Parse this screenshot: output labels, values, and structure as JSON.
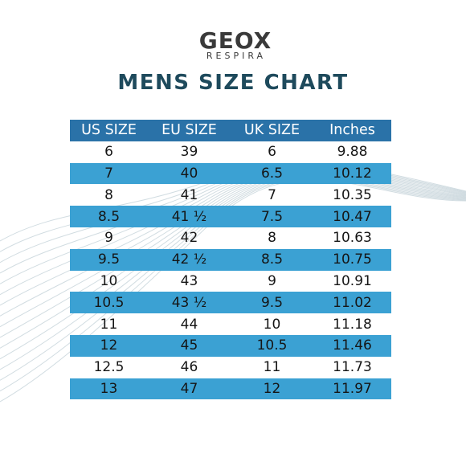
{
  "brand": {
    "name": "GEOX",
    "tagline": "RESPIRA"
  },
  "title": "MENS SIZE CHART",
  "table": {
    "headers": [
      "US SIZE",
      "EU SIZE",
      "UK SIZE",
      "Inches"
    ],
    "rows": [
      [
        "6",
        "39",
        "6",
        "9.88"
      ],
      [
        "7",
        "40",
        "6.5",
        "10.12"
      ],
      [
        "8",
        "41",
        "7",
        "10.35"
      ],
      [
        "8.5",
        "41 ½",
        "7.5",
        "10.47"
      ],
      [
        "9",
        "42",
        "8",
        "10.63"
      ],
      [
        "9.5",
        "42 ½",
        "8.5",
        "10.75"
      ],
      [
        "10",
        "43",
        "9",
        "10.91"
      ],
      [
        "10.5",
        "43 ½",
        "9.5",
        "11.02"
      ],
      [
        "11",
        "44",
        "10",
        "11.18"
      ],
      [
        "12",
        "45",
        "10.5",
        "11.46"
      ],
      [
        "12.5",
        "46",
        "11",
        "11.73"
      ],
      [
        "13",
        "47",
        "12",
        "11.97"
      ]
    ]
  },
  "colors": {
    "header_bg": "#2a72a8",
    "band_bg": "#3ba1d3",
    "title": "#1e4a5c",
    "logo": "#3a3a3a",
    "wave_lines": "#c9d6dc"
  }
}
